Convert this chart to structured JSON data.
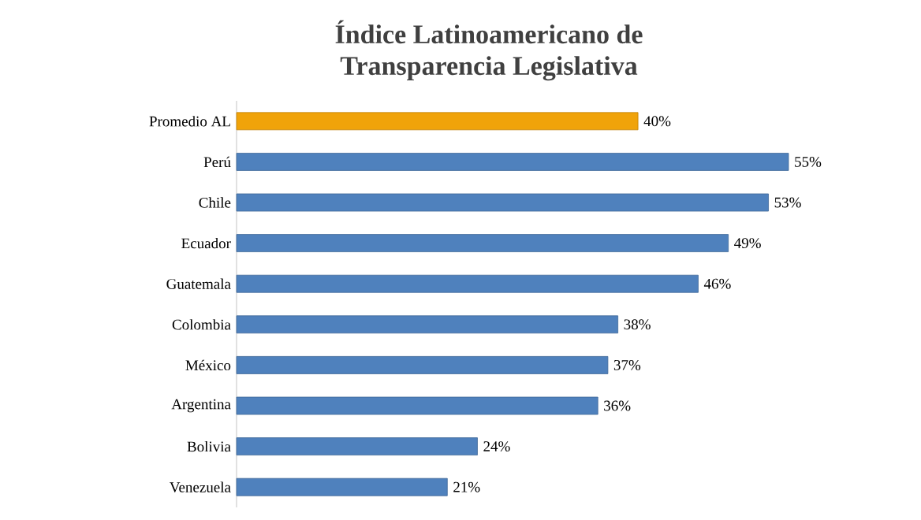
{
  "chart_data": {
    "type": "bar",
    "orientation": "horizontal",
    "title": "Índice Latinoamericano de\nTransparencia Legislativa",
    "categories": [
      "Promedio AL",
      "Perú",
      "Chile",
      "Ecuador",
      "Guatemala",
      "Colombia",
      "México",
      "Argentina",
      "Bolivia",
      "Venezuela"
    ],
    "values": [
      40,
      55,
      53,
      49,
      46,
      38,
      37,
      36,
      24,
      21
    ],
    "colors": [
      "#f0a30a",
      "#4f81bd",
      "#4f81bd",
      "#4f81bd",
      "#4f81bd",
      "#4f81bd",
      "#4f81bd",
      "#4f81bd",
      "#4f81bd",
      "#4f81bd"
    ],
    "value_labels": [
      "40%",
      "55%",
      "53%",
      "49%",
      "46%",
      "38%",
      "37%",
      "36%",
      "24%",
      "21%"
    ],
    "tick_labels": "y",
    "grid": false
  }
}
